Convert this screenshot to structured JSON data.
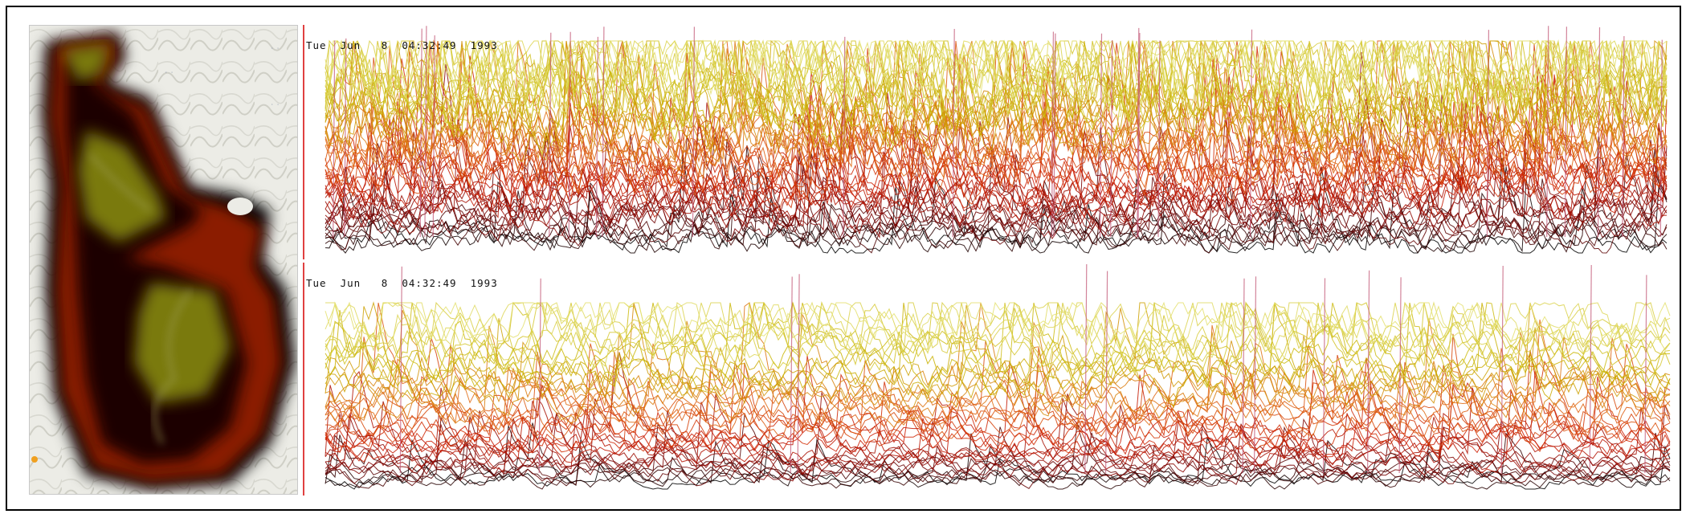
{
  "chart_data": [
    {
      "type": "line",
      "timestamp": "Tue  Jun   8  04:32:49  1993",
      "series_count": 60,
      "color_scale": [
        "#000000",
        "#7a0000",
        "#cc1a00",
        "#e06a10",
        "#c8b400",
        "#e4e070"
      ],
      "spike_color": "#c05070"
    },
    {
      "type": "line",
      "timestamp": "Tue  Jun   8  04:32:49  1993",
      "series_count": 45,
      "color_scale": [
        "#000000",
        "#7a0000",
        "#cc1a00",
        "#e06a10",
        "#c8b400",
        "#e4e070"
      ],
      "spike_color": "#c05070"
    }
  ],
  "colors": {
    "border": "#000000",
    "axis": "#e04040",
    "map_outer": "#8b1a00",
    "map_core": "#7a7a10"
  }
}
